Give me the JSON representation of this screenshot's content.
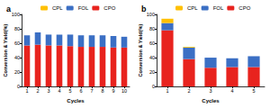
{
  "chart_data": [
    {
      "type": "bar",
      "title": "a",
      "x_label": "Cycles",
      "y_label": "Conversion & Yield(%)",
      "categories": [
        "1",
        "2",
        "3",
        "4",
        "5",
        "6",
        "7",
        "8",
        "9",
        "10"
      ],
      "series": [
        {
          "name": "CPL",
          "color": "#ffc000",
          "values": [
            0,
            0,
            0,
            0,
            0,
            0,
            0,
            0,
            0,
            0
          ]
        },
        {
          "name": "FOL",
          "color": "#3b6fc4",
          "values": [
            14,
            17,
            15,
            15,
            16,
            16,
            16,
            16,
            16,
            15
          ]
        },
        {
          "name": "CPO",
          "color": "#e8231e",
          "values": [
            57,
            58,
            57,
            57,
            56,
            55,
            55,
            55,
            54,
            54
          ]
        }
      ],
      "ylim": [
        0,
        100
      ],
      "yticks": [
        0,
        20,
        40,
        60,
        80,
        100
      ],
      "stacked": true,
      "legend": "top"
    },
    {
      "type": "bar",
      "title": "b",
      "x_label": "Cycles",
      "y_label": "Conversion & Yield(%)",
      "categories": [
        "1",
        "2",
        "3",
        "4",
        "5"
      ],
      "series": [
        {
          "name": "CPL",
          "color": "#ffc000",
          "values": [
            6,
            1,
            0,
            0,
            0
          ]
        },
        {
          "name": "FOL",
          "color": "#3b6fc4",
          "values": [
            10,
            16,
            14,
            12,
            15
          ]
        },
        {
          "name": "CPO",
          "color": "#e8231e",
          "values": [
            78,
            38,
            26,
            27,
            27
          ]
        }
      ],
      "ylim": [
        0,
        100
      ],
      "yticks": [
        0,
        20,
        40,
        60,
        80,
        100
      ],
      "stacked": true,
      "legend": "top"
    }
  ]
}
